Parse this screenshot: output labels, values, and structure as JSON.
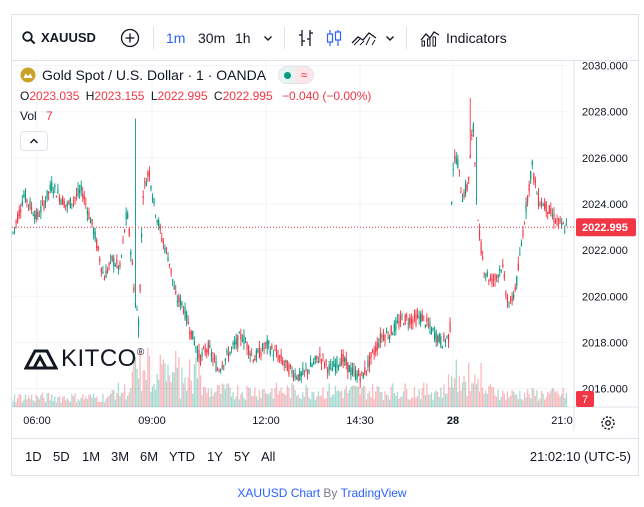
{
  "toolbar": {
    "symbol": "XAUUSD",
    "intervals": [
      "1m",
      "30m",
      "1h"
    ],
    "active_interval": "1m",
    "indicators_label": "Indicators"
  },
  "legend": {
    "title": "Gold Spot / U.S. Dollar · 1 · OANDA",
    "open_label": "O",
    "open": "2023.035",
    "high_label": "H",
    "high": "2023.155",
    "low_label": "L",
    "low": "2022.995",
    "close_label": "C",
    "close": "2022.995",
    "change": "−0.040 (−0.00%)",
    "vol_label": "Vol",
    "vol": "7"
  },
  "chart_data": {
    "type": "candlestick",
    "price_axis": [
      "2030.000",
      "2028.000",
      "2026.000",
      "2024.000",
      "2022.000",
      "2020.000",
      "2018.000",
      "2016.000"
    ],
    "ylim": [
      2015.2,
      2030.2
    ],
    "time_axis": [
      "06:00",
      "09:00",
      "12:00",
      "14:30",
      "28",
      "21:0"
    ],
    "last_price": "2022.995",
    "last_volume": "7",
    "path": [
      [
        0,
        2022.6
      ],
      [
        12,
        2024.4
      ],
      [
        25,
        2023.4
      ],
      [
        40,
        2024.8
      ],
      [
        55,
        2023.9
      ],
      [
        70,
        2024.6
      ],
      [
        82,
        2022.8
      ],
      [
        92,
        2020.8
      ],
      [
        100,
        2021.6
      ],
      [
        108,
        2021.2
      ],
      [
        115,
        2023.7
      ],
      [
        120,
        2021.5
      ],
      [
        123,
        2019.8
      ],
      [
        127,
        2018.9
      ],
      [
        131,
        2024.5
      ],
      [
        137,
        2025.5
      ],
      [
        142,
        2024.0
      ],
      [
        150,
        2022.5
      ],
      [
        157,
        2021.6
      ],
      [
        164,
        2019.9
      ],
      [
        170,
        2019.7
      ],
      [
        178,
        2018.6
      ],
      [
        188,
        2017.3
      ],
      [
        196,
        2017.8
      ],
      [
        206,
        2016.8
      ],
      [
        218,
        2017.6
      ],
      [
        230,
        2018.3
      ],
      [
        242,
        2017.3
      ],
      [
        255,
        2017.9
      ],
      [
        268,
        2017.3
      ],
      [
        278,
        2016.8
      ],
      [
        288,
        2016.5
      ],
      [
        298,
        2016.9
      ],
      [
        308,
        2017.4
      ],
      [
        318,
        2016.8
      ],
      [
        330,
        2017.3
      ],
      [
        340,
        2016.7
      ],
      [
        350,
        2016.5
      ],
      [
        360,
        2017.4
      ],
      [
        370,
        2018.3
      ],
      [
        378,
        2018.4
      ],
      [
        390,
        2019.0
      ],
      [
        400,
        2019.0
      ],
      [
        410,
        2019.1
      ],
      [
        420,
        2018.5
      ],
      [
        430,
        2018.0
      ],
      [
        438,
        2018.3
      ],
      [
        440,
        2025.5
      ],
      [
        445,
        2026.1
      ],
      [
        450,
        2024.3
      ],
      [
        456,
        2024.8
      ],
      [
        461,
        2027.5
      ],
      [
        466,
        2023.1
      ],
      [
        472,
        2021.2
      ],
      [
        478,
        2020.7
      ],
      [
        484,
        2020.8
      ],
      [
        490,
        2021.4
      ],
      [
        494,
        2020.2
      ],
      [
        498,
        2019.5
      ],
      [
        505,
        2020.7
      ],
      [
        512,
        2023.2
      ],
      [
        520,
        2025.7
      ],
      [
        526,
        2024.2
      ],
      [
        534,
        2023.9
      ],
      [
        540,
        2023.5
      ],
      [
        548,
        2023.1
      ],
      [
        552,
        2022.995
      ]
    ],
    "spikes": [
      [
        123,
        2027.7
      ],
      [
        127,
        2018.2
      ],
      [
        458,
        2028.6
      ],
      [
        464,
        2026.9
      ],
      [
        496,
        2019.5
      ]
    ]
  },
  "branding": {
    "logo_text": "KITCO",
    "reg_mark": "®"
  },
  "footer": {
    "ranges": [
      "1D",
      "5D",
      "1M",
      "3M",
      "6M",
      "YTD",
      "1Y",
      "5Y",
      "All"
    ],
    "clock": "21:02:10 (UTC-5)"
  },
  "credit": {
    "symbol_link": "XAUUSD Chart",
    "by": "By",
    "provider": "TradingView"
  },
  "colors": {
    "up": "#089981",
    "down": "#f23645",
    "accent": "#2962ff",
    "grid": "#f0f3fa"
  }
}
